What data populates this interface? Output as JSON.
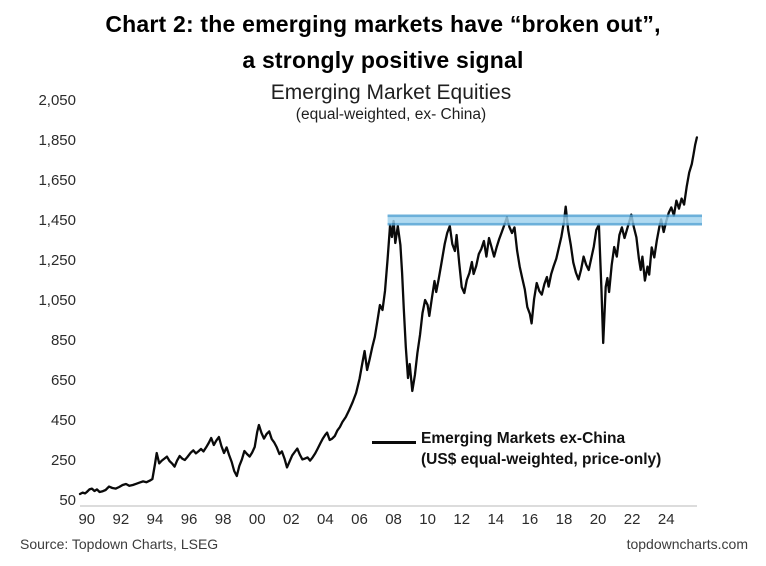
{
  "header": {
    "title_line1": "Chart 2: the emerging markets have “broken out”,",
    "title_line2": "a strongly positive signal"
  },
  "legend": {
    "line1": "Emerging Markets ex-China",
    "line2": "(US$ equal-weighted, price-only)"
  },
  "footer": {
    "source": "Source: Topdown Charts, LSEG",
    "website": "topdowncharts.com"
  },
  "colors": {
    "line": "#0a0a0a",
    "band_fill": "#9fd3ee",
    "band_edge": "#4d9fd3",
    "axis_line": "#dcdcdc",
    "text": "#262626"
  },
  "chart_data": {
    "type": "line",
    "title": "Emerging Market Equities",
    "subtitle": "(equal-weighted, ex- China)",
    "xlabel": "",
    "ylabel": "",
    "grid": false,
    "legend_position": "inside-lower-right",
    "xlim": [
      1989.6,
      2026.1
    ],
    "ylim": [
      50,
      2050
    ],
    "y_ticks": [
      {
        "value": 2050,
        "label": "2,050"
      },
      {
        "value": 1850,
        "label": "1,850"
      },
      {
        "value": 1650,
        "label": "1,650"
      },
      {
        "value": 1450,
        "label": "1,450"
      },
      {
        "value": 1250,
        "label": "1,250"
      },
      {
        "value": 1050,
        "label": "1,050"
      },
      {
        "value": 850,
        "label": "850"
      },
      {
        "value": 650,
        "label": "650"
      },
      {
        "value": 450,
        "label": "450"
      },
      {
        "value": 250,
        "label": "250"
      },
      {
        "value": 50,
        "label": "50"
      }
    ],
    "x_ticks": [
      {
        "year": 1990,
        "label": "90"
      },
      {
        "year": 1992,
        "label": "92"
      },
      {
        "year": 1994,
        "label": "94"
      },
      {
        "year": 1996,
        "label": "96"
      },
      {
        "year": 1998,
        "label": "98"
      },
      {
        "year": 2000,
        "label": "00"
      },
      {
        "year": 2002,
        "label": "02"
      },
      {
        "year": 2004,
        "label": "04"
      },
      {
        "year": 2006,
        "label": "06"
      },
      {
        "year": 2008,
        "label": "08"
      },
      {
        "year": 2010,
        "label": "10"
      },
      {
        "year": 2012,
        "label": "12"
      },
      {
        "year": 2014,
        "label": "14"
      },
      {
        "year": 2016,
        "label": "16"
      },
      {
        "year": 2018,
        "label": "18"
      },
      {
        "year": 2020,
        "label": "20"
      },
      {
        "year": 2022,
        "label": "22"
      },
      {
        "year": 2024,
        "label": "24"
      }
    ],
    "band": {
      "description": "horizontal breakout / resistance band at ~1,450",
      "x1": 2007.65,
      "x2": 2026.1,
      "y1": 1430,
      "y2": 1480,
      "fill": "#9fd3ee",
      "edge": "#4d9fd3"
    },
    "series": [
      {
        "name": "Emerging Markets ex-China (US$ equal-weighted, price-only)",
        "color": "#0a0a0a",
        "points": [
          [
            1989.6,
            85
          ],
          [
            1989.75,
            92
          ],
          [
            1989.9,
            88
          ],
          [
            1990.0,
            95
          ],
          [
            1990.15,
            108
          ],
          [
            1990.3,
            112
          ],
          [
            1990.45,
            100
          ],
          [
            1990.6,
            108
          ],
          [
            1990.75,
            95
          ],
          [
            1990.9,
            98
          ],
          [
            1991.1,
            105
          ],
          [
            1991.3,
            122
          ],
          [
            1991.5,
            115
          ],
          [
            1991.7,
            112
          ],
          [
            1991.9,
            120
          ],
          [
            1992.1,
            130
          ],
          [
            1992.3,
            135
          ],
          [
            1992.5,
            126
          ],
          [
            1992.7,
            130
          ],
          [
            1992.9,
            136
          ],
          [
            1993.1,
            142
          ],
          [
            1993.3,
            148
          ],
          [
            1993.5,
            144
          ],
          [
            1993.7,
            152
          ],
          [
            1993.85,
            160
          ],
          [
            1994.0,
            235
          ],
          [
            1994.1,
            290
          ],
          [
            1994.25,
            238
          ],
          [
            1994.4,
            252
          ],
          [
            1994.55,
            262
          ],
          [
            1994.7,
            272
          ],
          [
            1994.85,
            250
          ],
          [
            1995.0,
            238
          ],
          [
            1995.15,
            222
          ],
          [
            1995.3,
            252
          ],
          [
            1995.45,
            275
          ],
          [
            1995.6,
            262
          ],
          [
            1995.75,
            255
          ],
          [
            1995.9,
            270
          ],
          [
            1996.1,
            292
          ],
          [
            1996.25,
            303
          ],
          [
            1996.4,
            288
          ],
          [
            1996.55,
            298
          ],
          [
            1996.7,
            310
          ],
          [
            1996.85,
            298
          ],
          [
            1997.0,
            318
          ],
          [
            1997.15,
            340
          ],
          [
            1997.3,
            365
          ],
          [
            1997.45,
            330
          ],
          [
            1997.6,
            352
          ],
          [
            1997.75,
            370
          ],
          [
            1997.9,
            325
          ],
          [
            1998.05,
            290
          ],
          [
            1998.2,
            318
          ],
          [
            1998.35,
            280
          ],
          [
            1998.5,
            245
          ],
          [
            1998.65,
            200
          ],
          [
            1998.8,
            175
          ],
          [
            1998.95,
            225
          ],
          [
            1999.1,
            258
          ],
          [
            1999.25,
            300
          ],
          [
            1999.4,
            285
          ],
          [
            1999.55,
            272
          ],
          [
            1999.7,
            292
          ],
          [
            1999.85,
            320
          ],
          [
            2000.0,
            395
          ],
          [
            2000.1,
            430
          ],
          [
            2000.25,
            390
          ],
          [
            2000.4,
            362
          ],
          [
            2000.55,
            385
          ],
          [
            2000.7,
            398
          ],
          [
            2000.85,
            360
          ],
          [
            2001.0,
            342
          ],
          [
            2001.15,
            318
          ],
          [
            2001.3,
            285
          ],
          [
            2001.45,
            298
          ],
          [
            2001.6,
            262
          ],
          [
            2001.75,
            218
          ],
          [
            2001.9,
            248
          ],
          [
            2002.05,
            278
          ],
          [
            2002.2,
            295
          ],
          [
            2002.35,
            312
          ],
          [
            2002.5,
            282
          ],
          [
            2002.65,
            258
          ],
          [
            2002.8,
            262
          ],
          [
            2002.95,
            268
          ],
          [
            2003.1,
            252
          ],
          [
            2003.25,
            268
          ],
          [
            2003.4,
            288
          ],
          [
            2003.55,
            312
          ],
          [
            2003.7,
            338
          ],
          [
            2003.85,
            362
          ],
          [
            2004.0,
            382
          ],
          [
            2004.1,
            392
          ],
          [
            2004.25,
            355
          ],
          [
            2004.4,
            362
          ],
          [
            2004.55,
            375
          ],
          [
            2004.7,
            402
          ],
          [
            2004.85,
            420
          ],
          [
            2005.0,
            445
          ],
          [
            2005.2,
            470
          ],
          [
            2005.4,
            505
          ],
          [
            2005.6,
            545
          ],
          [
            2005.8,
            590
          ],
          [
            2006.0,
            660
          ],
          [
            2006.15,
            730
          ],
          [
            2006.3,
            800
          ],
          [
            2006.45,
            705
          ],
          [
            2006.6,
            760
          ],
          [
            2006.75,
            820
          ],
          [
            2006.9,
            870
          ],
          [
            2007.05,
            950
          ],
          [
            2007.2,
            1030
          ],
          [
            2007.35,
            1005
          ],
          [
            2007.5,
            1100
          ],
          [
            2007.65,
            1260
          ],
          [
            2007.8,
            1430
          ],
          [
            2007.9,
            1370
          ],
          [
            2008.0,
            1450
          ],
          [
            2008.1,
            1340
          ],
          [
            2008.25,
            1425
          ],
          [
            2008.4,
            1330
          ],
          [
            2008.5,
            1190
          ],
          [
            2008.6,
            1010
          ],
          [
            2008.72,
            820
          ],
          [
            2008.85,
            665
          ],
          [
            2008.95,
            735
          ],
          [
            2009.1,
            600
          ],
          [
            2009.25,
            680
          ],
          [
            2009.4,
            790
          ],
          [
            2009.55,
            880
          ],
          [
            2009.7,
            990
          ],
          [
            2009.85,
            1055
          ],
          [
            2010.0,
            1030
          ],
          [
            2010.1,
            975
          ],
          [
            2010.25,
            1065
          ],
          [
            2010.4,
            1150
          ],
          [
            2010.5,
            1095
          ],
          [
            2010.65,
            1160
          ],
          [
            2010.8,
            1235
          ],
          [
            2011.0,
            1335
          ],
          [
            2011.15,
            1390
          ],
          [
            2011.3,
            1425
          ],
          [
            2011.45,
            1335
          ],
          [
            2011.6,
            1300
          ],
          [
            2011.7,
            1380
          ],
          [
            2011.85,
            1240
          ],
          [
            2012.0,
            1120
          ],
          [
            2012.15,
            1090
          ],
          [
            2012.3,
            1155
          ],
          [
            2012.45,
            1190
          ],
          [
            2012.6,
            1245
          ],
          [
            2012.7,
            1185
          ],
          [
            2012.85,
            1225
          ],
          [
            2013.0,
            1285
          ],
          [
            2013.15,
            1310
          ],
          [
            2013.3,
            1350
          ],
          [
            2013.45,
            1272
          ],
          [
            2013.6,
            1365
          ],
          [
            2013.75,
            1320
          ],
          [
            2013.9,
            1272
          ],
          [
            2014.05,
            1320
          ],
          [
            2014.2,
            1360
          ],
          [
            2014.35,
            1395
          ],
          [
            2014.5,
            1430
          ],
          [
            2014.65,
            1468
          ],
          [
            2014.8,
            1420
          ],
          [
            2014.95,
            1390
          ],
          [
            2015.1,
            1418
          ],
          [
            2015.25,
            1302
          ],
          [
            2015.4,
            1222
          ],
          [
            2015.55,
            1165
          ],
          [
            2015.7,
            1108
          ],
          [
            2015.85,
            1020
          ],
          [
            2016.0,
            985
          ],
          [
            2016.1,
            938
          ],
          [
            2016.25,
            1060
          ],
          [
            2016.4,
            1140
          ],
          [
            2016.55,
            1100
          ],
          [
            2016.7,
            1082
          ],
          [
            2016.85,
            1135
          ],
          [
            2017.0,
            1170
          ],
          [
            2017.1,
            1122
          ],
          [
            2017.25,
            1185
          ],
          [
            2017.4,
            1225
          ],
          [
            2017.55,
            1262
          ],
          [
            2017.7,
            1318
          ],
          [
            2017.85,
            1372
          ],
          [
            2018.0,
            1448
          ],
          [
            2018.1,
            1522
          ],
          [
            2018.25,
            1405
          ],
          [
            2018.4,
            1330
          ],
          [
            2018.55,
            1242
          ],
          [
            2018.7,
            1192
          ],
          [
            2018.85,
            1158
          ],
          [
            2019.0,
            1205
          ],
          [
            2019.15,
            1272
          ],
          [
            2019.3,
            1232
          ],
          [
            2019.45,
            1205
          ],
          [
            2019.6,
            1262
          ],
          [
            2019.75,
            1322
          ],
          [
            2019.9,
            1405
          ],
          [
            2020.05,
            1432
          ],
          [
            2020.2,
            1100
          ],
          [
            2020.3,
            840
          ],
          [
            2020.45,
            1120
          ],
          [
            2020.55,
            1165
          ],
          [
            2020.65,
            1095
          ],
          [
            2020.8,
            1230
          ],
          [
            2020.95,
            1320
          ],
          [
            2021.1,
            1272
          ],
          [
            2021.25,
            1380
          ],
          [
            2021.4,
            1418
          ],
          [
            2021.55,
            1365
          ],
          [
            2021.7,
            1408
          ],
          [
            2021.85,
            1452
          ],
          [
            2021.95,
            1482
          ],
          [
            2022.1,
            1420
          ],
          [
            2022.25,
            1368
          ],
          [
            2022.4,
            1262
          ],
          [
            2022.5,
            1205
          ],
          [
            2022.6,
            1272
          ],
          [
            2022.75,
            1152
          ],
          [
            2022.9,
            1222
          ],
          [
            2023.0,
            1182
          ],
          [
            2023.15,
            1318
          ],
          [
            2023.3,
            1268
          ],
          [
            2023.45,
            1352
          ],
          [
            2023.6,
            1422
          ],
          [
            2023.7,
            1458
          ],
          [
            2023.85,
            1395
          ],
          [
            2024.0,
            1448
          ],
          [
            2024.15,
            1492
          ],
          [
            2024.3,
            1518
          ],
          [
            2024.45,
            1478
          ],
          [
            2024.6,
            1552
          ],
          [
            2024.75,
            1512
          ],
          [
            2024.9,
            1562
          ],
          [
            2025.05,
            1532
          ],
          [
            2025.2,
            1622
          ],
          [
            2025.35,
            1692
          ],
          [
            2025.5,
            1735
          ],
          [
            2025.6,
            1782
          ],
          [
            2025.7,
            1832
          ],
          [
            2025.8,
            1868
          ]
        ]
      }
    ]
  }
}
